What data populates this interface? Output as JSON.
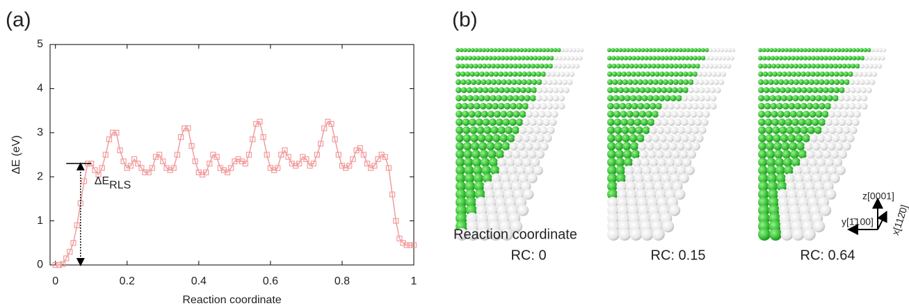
{
  "panel_a": {
    "label": "(a)"
  },
  "panel_b": {
    "label": "(b)",
    "axis_caption": "Reaction coordinate",
    "frames": [
      "RC: 0",
      "RC: 0.15",
      "RC: 0.64"
    ],
    "directions": [
      "z[0001]",
      "y[1̄100]",
      "x[112̄0]"
    ]
  },
  "chart_data": {
    "type": "line",
    "xlabel": "Reaction coordinate",
    "ylabel": "ΔE (eV)",
    "annotation": {
      "main": "ΔE",
      "sub": "RLS"
    },
    "xlim": [
      -0.015,
      1
    ],
    "ylim": [
      0,
      5
    ],
    "xticks": [
      0,
      0.2,
      0.4,
      0.6,
      0.8,
      1
    ],
    "yticks": [
      0,
      1,
      2,
      3,
      4,
      5
    ],
    "x": [
      0,
      0.01,
      0.02,
      0.03,
      0.04,
      0.05,
      0.06,
      0.07,
      0.08,
      0.09,
      0.1,
      0.11,
      0.12,
      0.13,
      0.14,
      0.15,
      0.16,
      0.17,
      0.18,
      0.19,
      0.2,
      0.21,
      0.22,
      0.23,
      0.24,
      0.25,
      0.26,
      0.27,
      0.28,
      0.29,
      0.3,
      0.31,
      0.32,
      0.33,
      0.34,
      0.35,
      0.36,
      0.37,
      0.38,
      0.39,
      0.4,
      0.41,
      0.42,
      0.43,
      0.44,
      0.45,
      0.46,
      0.47,
      0.48,
      0.49,
      0.5,
      0.51,
      0.52,
      0.53,
      0.54,
      0.55,
      0.56,
      0.57,
      0.58,
      0.59,
      0.6,
      0.61,
      0.62,
      0.63,
      0.64,
      0.65,
      0.66,
      0.67,
      0.68,
      0.69,
      0.7,
      0.71,
      0.72,
      0.73,
      0.74,
      0.75,
      0.76,
      0.77,
      0.78,
      0.79,
      0.8,
      0.81,
      0.82,
      0.83,
      0.84,
      0.85,
      0.86,
      0.87,
      0.88,
      0.89,
      0.9,
      0.91,
      0.92,
      0.93,
      0.94,
      0.95,
      0.96,
      0.97,
      0.98,
      0.99,
      1
    ],
    "series": [
      {
        "color": "#f29b9b",
        "values": [
          0,
          0,
          0.02,
          0.15,
          0.3,
          0.5,
          0.9,
          1.4,
          1.9,
          2.3,
          2.3,
          2.15,
          2.05,
          2.2,
          2.5,
          2.85,
          3.0,
          3.0,
          2.6,
          2.35,
          2.2,
          2.25,
          2.4,
          2.3,
          2.2,
          2.1,
          2.1,
          2.2,
          2.45,
          2.5,
          2.35,
          2.2,
          2.15,
          2.2,
          2.5,
          2.9,
          3.1,
          3.1,
          2.7,
          2.35,
          2.1,
          2.05,
          2.1,
          2.3,
          2.5,
          2.45,
          2.2,
          2.15,
          2.1,
          2.2,
          2.35,
          2.4,
          2.35,
          2.3,
          2.5,
          2.85,
          3.2,
          3.25,
          2.9,
          2.5,
          2.2,
          2.15,
          2.2,
          2.5,
          2.6,
          2.45,
          2.3,
          2.25,
          2.3,
          2.45,
          2.4,
          2.25,
          2.3,
          2.5,
          2.75,
          3.1,
          3.25,
          3.2,
          2.85,
          2.5,
          2.25,
          2.2,
          2.25,
          2.4,
          2.6,
          2.65,
          2.5,
          2.3,
          2.2,
          2.25,
          2.4,
          2.5,
          2.45,
          2.2,
          1.6,
          1.0,
          0.6,
          0.5,
          0.45,
          0.45,
          0.45
        ]
      }
    ]
  }
}
